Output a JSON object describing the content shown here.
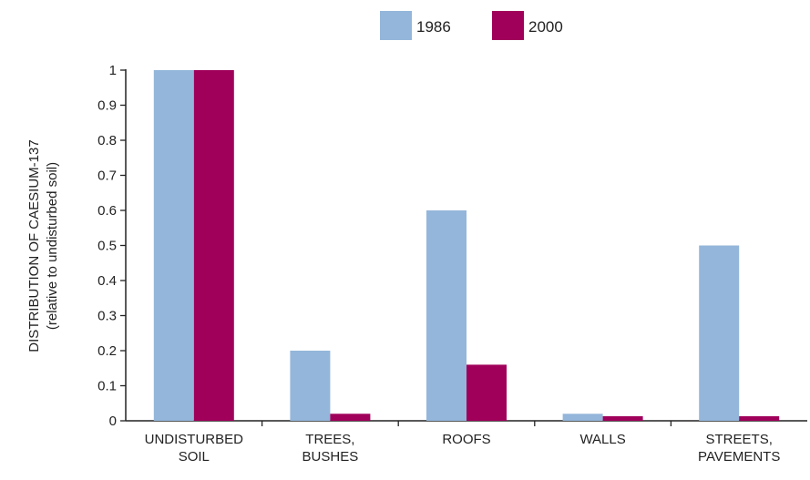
{
  "chart_data": {
    "type": "bar",
    "categories": [
      [
        "UNDISTURBED",
        "SOIL"
      ],
      [
        "TREES,",
        "BUSHES"
      ],
      [
        "ROOFS"
      ],
      [
        "WALLS"
      ],
      [
        "STREETS,",
        "PAVEMENTS"
      ]
    ],
    "series": [
      {
        "name": "1986",
        "color": "#94b6da",
        "values": [
          1.0,
          0.2,
          0.6,
          0.02,
          0.5
        ]
      },
      {
        "name": "2000",
        "color": "#a0005a",
        "values": [
          1.0,
          0.02,
          0.16,
          0.013,
          0.013
        ]
      }
    ],
    "ylabel": [
      "DISTRIBUTION OF CAESIUM-137",
      "(relative to undisturbed soil)"
    ],
    "ylim": [
      0,
      1
    ],
    "yticks": [
      "0",
      "0.1",
      "0.2",
      "0.3",
      "0.4",
      "0.5",
      "0.6",
      "0.7",
      "0.8",
      "0.9",
      "1"
    ],
    "legend": "top-center",
    "grid": false
  }
}
